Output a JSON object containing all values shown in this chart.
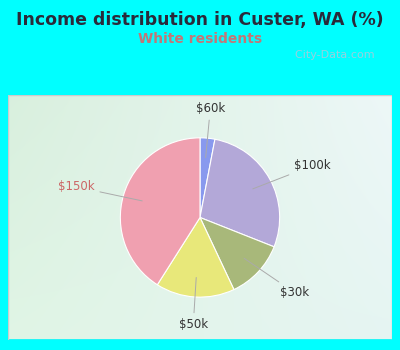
{
  "title": "Income distribution in Custer, WA (%)",
  "subtitle": "White residents",
  "title_color": "#2a2a3a",
  "subtitle_color": "#c07878",
  "bg_color": "#00ffff",
  "chart_bg": "#d8eee4",
  "slices": [
    {
      "label": "$60k",
      "value": 3,
      "color": "#8899ee"
    },
    {
      "label": "$100k",
      "value": 28,
      "color": "#b3a8d8"
    },
    {
      "label": "$30k",
      "value": 12,
      "color": "#a8b87a"
    },
    {
      "label": "$50k",
      "value": 16,
      "color": "#e8e87a"
    },
    {
      "label": "$150k",
      "value": 41,
      "color": "#f0a0b0"
    }
  ],
  "label_colors": {
    "$60k": "#333333",
    "$100k": "#333333",
    "$30k": "#333333",
    "$50k": "#333333",
    "$150k": "#cc6666"
  },
  "startangle": 90,
  "counterclock": false,
  "watermark": "  City-Data.com"
}
